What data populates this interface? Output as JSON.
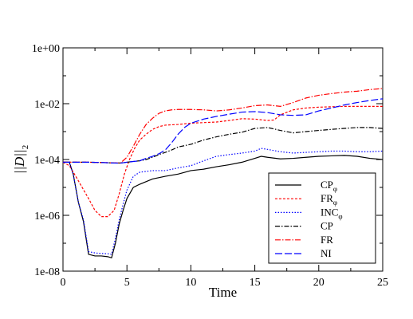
{
  "chart_data": {
    "type": "line",
    "xlabel": "Time",
    "ylabel": "||D||",
    "ylabel_sub": "2",
    "x_ticks": [
      0,
      5,
      10,
      15,
      20,
      25
    ],
    "x_tick_labels": [
      "0",
      "5",
      "10",
      "15",
      "20",
      "25"
    ],
    "y_scale": "log",
    "y_ticks": [
      1e-08,
      1e-06,
      0.0001,
      0.01,
      1
    ],
    "y_tick_labels": [
      "1e-08",
      "1e-06",
      "1e-04",
      "1e-02",
      "1e+00"
    ],
    "xlim": [
      0,
      25
    ],
    "ylim": [
      1e-08,
      1
    ],
    "legend_position": "bottom-right",
    "series": [
      {
        "name": "CP",
        "subscript": "φ",
        "color": "#000000",
        "dash": "",
        "x": [
          0,
          0.5,
          0.8,
          1.2,
          1.6,
          2.0,
          2.5,
          3.0,
          3.5,
          3.8,
          4.1,
          4.4,
          4.7,
          5.0,
          5.5,
          6.0,
          7.0,
          8.0,
          9.0,
          10.0,
          11.0,
          12.0,
          13.0,
          14.0,
          15.0,
          15.5,
          16.0,
          17.0,
          18.0,
          19.0,
          20.0,
          21.0,
          22.0,
          23.0,
          24.0,
          25.0
        ],
        "y": [
          8e-05,
          8e-05,
          3e-05,
          3e-06,
          6e-07,
          4e-08,
          3.5e-08,
          3.5e-08,
          3.3e-08,
          3e-08,
          1e-07,
          5e-07,
          1.5e-06,
          4e-06,
          1e-05,
          1.3e-05,
          2e-05,
          2.5e-05,
          3e-05,
          4e-05,
          4.5e-05,
          5.5e-05,
          6.5e-05,
          8e-05,
          0.00011,
          0.00013,
          0.00012,
          0.000105,
          0.00011,
          0.00012,
          0.00013,
          0.000135,
          0.00014,
          0.00013,
          0.00011,
          0.0001
        ]
      },
      {
        "name": "FR",
        "subscript": "φ",
        "color": "#ff0000",
        "dash": "3,2",
        "x": [
          0,
          0.5,
          1.0,
          1.5,
          2.0,
          2.5,
          3.0,
          3.5,
          4.0,
          4.4,
          4.8,
          5.2,
          5.6,
          6.0,
          6.5,
          7.0,
          7.5,
          8.0,
          9.0,
          10.0,
          11.0,
          12.0,
          13.0,
          14.0,
          15.0,
          16.0,
          16.5,
          17.0,
          18.0,
          19.0,
          20.0,
          22.0,
          24.0,
          25.0
        ],
        "y": [
          8e-05,
          6e-05,
          2.5e-05,
          1e-05,
          4e-06,
          1.5e-06,
          9e-07,
          9e-07,
          1.5e-06,
          6e-06,
          3e-05,
          0.0001,
          0.00025,
          0.0005,
          0.0008,
          0.0012,
          0.0015,
          0.0017,
          0.0018,
          0.002,
          0.0021,
          0.0022,
          0.0025,
          0.0029,
          0.0028,
          0.0025,
          0.0026,
          0.004,
          0.006,
          0.007,
          0.0075,
          0.008,
          0.008,
          0.008
        ]
      },
      {
        "name": "INC",
        "subscript": "φ",
        "color": "#0000ff",
        "dash": "1.5,2",
        "x": [
          0,
          0.5,
          0.8,
          1.2,
          1.6,
          2.0,
          2.5,
          3.0,
          3.5,
          3.8,
          4.1,
          4.4,
          4.7,
          5.0,
          5.5,
          6.0,
          7.0,
          8.0,
          9.0,
          10.0,
          11.0,
          12.0,
          13.0,
          14.0,
          15.0,
          15.5,
          16.0,
          17.0,
          18.0,
          19.0,
          20.0,
          21.0,
          22.0,
          23.0,
          24.0,
          25.0
        ],
        "y": [
          8e-05,
          8e-05,
          3e-05,
          3e-06,
          7e-07,
          5e-08,
          4.5e-08,
          4.3e-08,
          4.2e-08,
          4e-08,
          1.5e-07,
          7e-07,
          2.5e-06,
          8e-06,
          2.5e-05,
          3.5e-05,
          4e-05,
          4e-05,
          5e-05,
          6e-05,
          9e-05,
          0.00013,
          0.00015,
          0.00017,
          0.0002,
          0.00025,
          0.00023,
          0.00019,
          0.00017,
          0.00018,
          0.00019,
          0.0002,
          0.0002,
          0.00019,
          0.00019,
          0.0002
        ]
      },
      {
        "name": "CP",
        "subscript": "",
        "color": "#000000",
        "dash": "6,2,1.5,2",
        "x": [
          0,
          1,
          2,
          3,
          4,
          4.5,
          5,
          5.5,
          6,
          6.5,
          7,
          7.5,
          8,
          8.5,
          9,
          10,
          11,
          12,
          13,
          14,
          15,
          16,
          17,
          18,
          19,
          20,
          21,
          22,
          23,
          24,
          25
        ],
        "y": [
          8e-05,
          8e-05,
          8e-05,
          7.8e-05,
          7.5e-05,
          7.5e-05,
          8e-05,
          8.5e-05,
          9e-05,
          0.0001,
          0.00012,
          0.00015,
          0.00018,
          0.00022,
          0.00028,
          0.00035,
          0.0005,
          0.00065,
          0.0008,
          0.00095,
          0.0013,
          0.0014,
          0.0011,
          0.0009,
          0.001,
          0.0011,
          0.0012,
          0.0013,
          0.0014,
          0.0014,
          0.0013
        ]
      },
      {
        "name": "FR",
        "subscript": "",
        "color": "#ff0000",
        "dash": "7,2,1.5,2",
        "x": [
          0,
          1,
          2,
          3,
          4,
          4.5,
          5,
          5.5,
          6,
          6.5,
          7,
          7.5,
          8,
          8.5,
          9,
          10,
          11,
          12,
          13,
          14,
          15,
          16,
          17,
          18,
          19,
          20,
          21,
          22,
          23,
          24,
          25
        ],
        "y": [
          8e-05,
          8e-05,
          8e-05,
          7.8e-05,
          7.6e-05,
          7.5e-05,
          0.00012,
          0.0003,
          0.0008,
          0.0018,
          0.003,
          0.0045,
          0.0055,
          0.006,
          0.0062,
          0.0062,
          0.006,
          0.0055,
          0.006,
          0.007,
          0.0085,
          0.009,
          0.008,
          0.011,
          0.016,
          0.02,
          0.023,
          0.026,
          0.028,
          0.032,
          0.035
        ]
      },
      {
        "name": "NI",
        "subscript": "",
        "color": "#0000ff",
        "dash": "9,3",
        "x": [
          0,
          1,
          2,
          3,
          4,
          4.5,
          5,
          5.5,
          6,
          6.5,
          7,
          7.5,
          8,
          8.5,
          9,
          9.5,
          10,
          11,
          12,
          13,
          14,
          15,
          16,
          17,
          18,
          19,
          20,
          21,
          22,
          23,
          24,
          25
        ],
        "y": [
          8e-05,
          8e-05,
          8e-05,
          7.8e-05,
          7.5e-05,
          7.4e-05,
          8e-05,
          8.5e-05,
          9e-05,
          0.00011,
          0.00013,
          0.00016,
          0.00022,
          0.0004,
          0.0008,
          0.0014,
          0.002,
          0.0028,
          0.0035,
          0.0042,
          0.005,
          0.0052,
          0.0048,
          0.004,
          0.0038,
          0.004,
          0.0055,
          0.007,
          0.009,
          0.011,
          0.013,
          0.015
        ]
      }
    ]
  }
}
